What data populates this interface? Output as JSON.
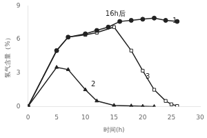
{
  "chart_data": {
    "type": "line",
    "xlabel": "时间(h)",
    "ylabel": "氢气含量（%）",
    "series": [
      {
        "x": [
          0,
          5,
          7,
          10,
          12,
          14,
          16,
          18,
          20,
          22,
          24,
          26
        ],
        "values": [
          0,
          5.0,
          6.2,
          6.5,
          6.8,
          7.1,
          7.6,
          7.7,
          7.8,
          7.9,
          7.7,
          7.6
        ],
        "color": "#222222",
        "marker": "circle"
      },
      {
        "x": [
          0,
          5,
          7,
          10,
          12,
          15,
          18,
          20,
          22
        ],
        "values": [
          0,
          3.5,
          3.3,
          1.5,
          0.5,
          0.1,
          0.05,
          0.02,
          0.0
        ],
        "color": "#222222",
        "marker": "triangle"
      },
      {
        "x": [
          0,
          5,
          7,
          10,
          12,
          15,
          18,
          20,
          22,
          24,
          25,
          26
        ],
        "values": [
          0,
          5.0,
          6.2,
          6.4,
          6.6,
          7.1,
          5.0,
          3.2,
          1.5,
          0.5,
          0.2,
          0.05
        ],
        "color": "#222222",
        "marker": "open-square"
      }
    ],
    "annotations": [
      {
        "text": "16h后",
        "x": 13.5,
        "y": 8.1
      },
      {
        "text": "1",
        "x": 25.2,
        "y": 7.5
      },
      {
        "text": "2",
        "x": 11.0,
        "y": 1.8
      },
      {
        "text": "3",
        "x": 20.5,
        "y": 2.5
      }
    ],
    "xlim": [
      0,
      30
    ],
    "ylim": [
      0,
      9
    ],
    "xticks": [
      0,
      5,
      10,
      15,
      20,
      25,
      30
    ],
    "yticks": [
      0,
      3,
      6,
      9
    ],
    "grid": false
  }
}
